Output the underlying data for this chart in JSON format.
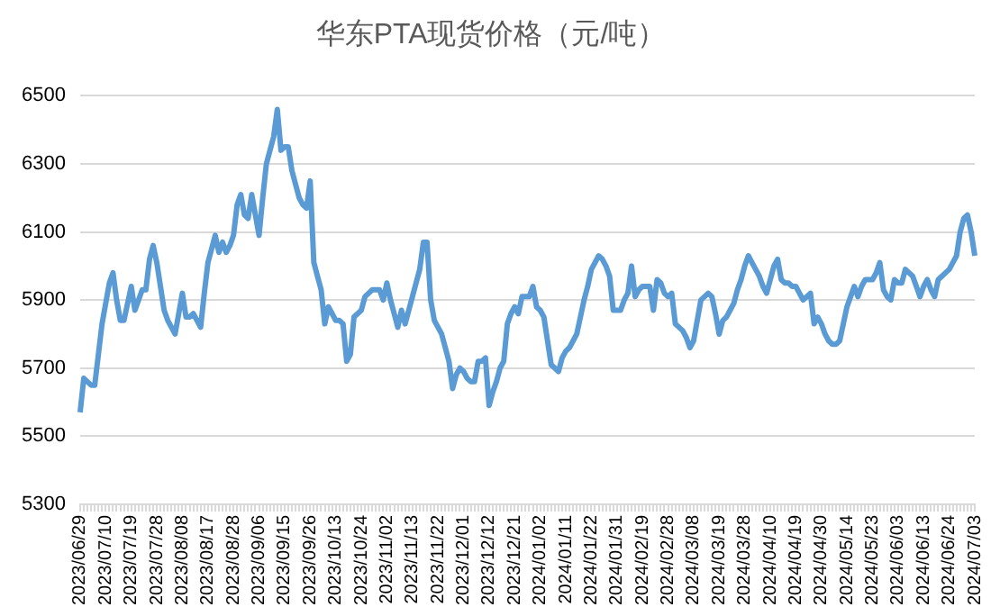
{
  "chart_data": {
    "type": "line",
    "title": "华东PTA现货价格（元/吨）",
    "categories": [
      "2023/06/29",
      null,
      null,
      null,
      null,
      null,
      null,
      "2023/07/10",
      null,
      null,
      null,
      null,
      null,
      null,
      "2023/07/19",
      null,
      null,
      null,
      null,
      null,
      null,
      "2023/07/28",
      null,
      null,
      null,
      null,
      null,
      null,
      "2023/08/08",
      null,
      null,
      null,
      null,
      null,
      null,
      "2023/08/17",
      null,
      null,
      null,
      null,
      null,
      null,
      "2023/08/28",
      null,
      null,
      null,
      null,
      null,
      null,
      "2023/09/06",
      null,
      null,
      null,
      null,
      null,
      null,
      "2023/09/15",
      null,
      null,
      null,
      null,
      null,
      null,
      "2023/09/26",
      null,
      null,
      null,
      null,
      null,
      null,
      "2023/10/13",
      null,
      null,
      null,
      null,
      null,
      null,
      "2023/10/24",
      null,
      null,
      null,
      null,
      null,
      null,
      "2023/11/02",
      null,
      null,
      null,
      null,
      null,
      null,
      "2023/11/13",
      null,
      null,
      null,
      null,
      null,
      null,
      "2023/11/22",
      null,
      null,
      null,
      null,
      null,
      null,
      "2023/12/01",
      null,
      null,
      null,
      null,
      null,
      null,
      "2023/12/12",
      null,
      null,
      null,
      null,
      null,
      null,
      "2023/12/21",
      null,
      null,
      null,
      null,
      null,
      null,
      "2024/01/02",
      null,
      null,
      null,
      null,
      null,
      null,
      "2024/01/11",
      null,
      null,
      null,
      null,
      null,
      null,
      "2024/01/22",
      null,
      null,
      null,
      null,
      null,
      null,
      "2024/01/31",
      null,
      null,
      null,
      null,
      null,
      null,
      "2024/02/19",
      null,
      null,
      null,
      null,
      null,
      null,
      "2024/02/28",
      null,
      null,
      null,
      null,
      null,
      null,
      "2024/03/08",
      null,
      null,
      null,
      null,
      null,
      null,
      "2024/03/19",
      null,
      null,
      null,
      null,
      null,
      null,
      "2024/03/28",
      null,
      null,
      null,
      null,
      null,
      null,
      "2024/04/10",
      null,
      null,
      null,
      null,
      null,
      null,
      "2024/04/19",
      null,
      null,
      null,
      null,
      null,
      null,
      "2024/04/30",
      null,
      null,
      null,
      null,
      null,
      null,
      "2024/05/14",
      null,
      null,
      null,
      null,
      null,
      null,
      "2024/05/23",
      null,
      null,
      null,
      null,
      null,
      null,
      "2024/06/03",
      null,
      null,
      null,
      null,
      null,
      null,
      "2024/06/13",
      null,
      null,
      null,
      null,
      null,
      null,
      "2024/06/24",
      null,
      null,
      null,
      null,
      null,
      null,
      "2024/07/03"
    ],
    "series": [
      {
        "color": "#5b9bd5",
        "values": [
          5570,
          5670,
          5660,
          5650,
          5650,
          5740,
          5830,
          5890,
          5950,
          5980,
          5900,
          5840,
          5840,
          5890,
          5940,
          5870,
          5900,
          5930,
          5930,
          6020,
          6060,
          6010,
          5940,
          5870,
          5840,
          5820,
          5800,
          5860,
          5920,
          5850,
          5850,
          5860,
          5840,
          5820,
          5920,
          6010,
          6050,
          6090,
          6040,
          6070,
          6040,
          6060,
          6090,
          6180,
          6210,
          6150,
          6140,
          6210,
          6150,
          6090,
          6200,
          6300,
          6340,
          6380,
          6460,
          6340,
          6350,
          6350,
          6280,
          6240,
          6200,
          6180,
          6170,
          6250,
          6010,
          5970,
          5930,
          5830,
          5880,
          5860,
          5840,
          5840,
          5830,
          5720,
          5740,
          5850,
          5860,
          5870,
          5910,
          5920,
          5930,
          5930,
          5930,
          5900,
          5950,
          5900,
          5860,
          5820,
          5870,
          5830,
          5870,
          5910,
          5950,
          5990,
          6070,
          6070,
          5900,
          5840,
          5820,
          5800,
          5760,
          5720,
          5640,
          5680,
          5700,
          5690,
          5670,
          5660,
          5660,
          5720,
          5720,
          5730,
          5590,
          5630,
          5660,
          5700,
          5720,
          5830,
          5860,
          5880,
          5860,
          5910,
          5910,
          5910,
          5940,
          5880,
          5870,
          5850,
          5780,
          5710,
          5700,
          5690,
          5730,
          5750,
          5760,
          5780,
          5800,
          5850,
          5900,
          5940,
          5990,
          6010,
          6030,
          6020,
          6000,
          5970,
          5870,
          5870,
          5870,
          5900,
          5920,
          6000,
          5910,
          5930,
          5940,
          5940,
          5940,
          5870,
          5960,
          5950,
          5920,
          5910,
          5920,
          5830,
          5820,
          5810,
          5790,
          5760,
          5780,
          5840,
          5900,
          5910,
          5920,
          5910,
          5860,
          5800,
          5840,
          5850,
          5870,
          5890,
          5930,
          5960,
          6000,
          6030,
          6010,
          5990,
          5970,
          5940,
          5920,
          5960,
          6000,
          6020,
          5960,
          5950,
          5950,
          5940,
          5940,
          5920,
          5900,
          5910,
          5920,
          5830,
          5850,
          5830,
          5800,
          5780,
          5770,
          5770,
          5780,
          5830,
          5880,
          5910,
          5940,
          5910,
          5940,
          5960,
          5960,
          5960,
          5980,
          6010,
          5930,
          5910,
          5900,
          5960,
          5950,
          5950,
          5990,
          5980,
          5970,
          5940,
          5910,
          5940,
          5960,
          5930,
          5910,
          5960,
          5970,
          5980,
          5990,
          6010,
          6030,
          6100,
          6140,
          6150,
          6100,
          6030
        ]
      }
    ],
    "ylim": [
      5300,
      6500
    ],
    "yticks": [
      5300,
      5500,
      5700,
      5900,
      6100,
      6300,
      6500
    ],
    "grid": "y",
    "legend": false
  }
}
